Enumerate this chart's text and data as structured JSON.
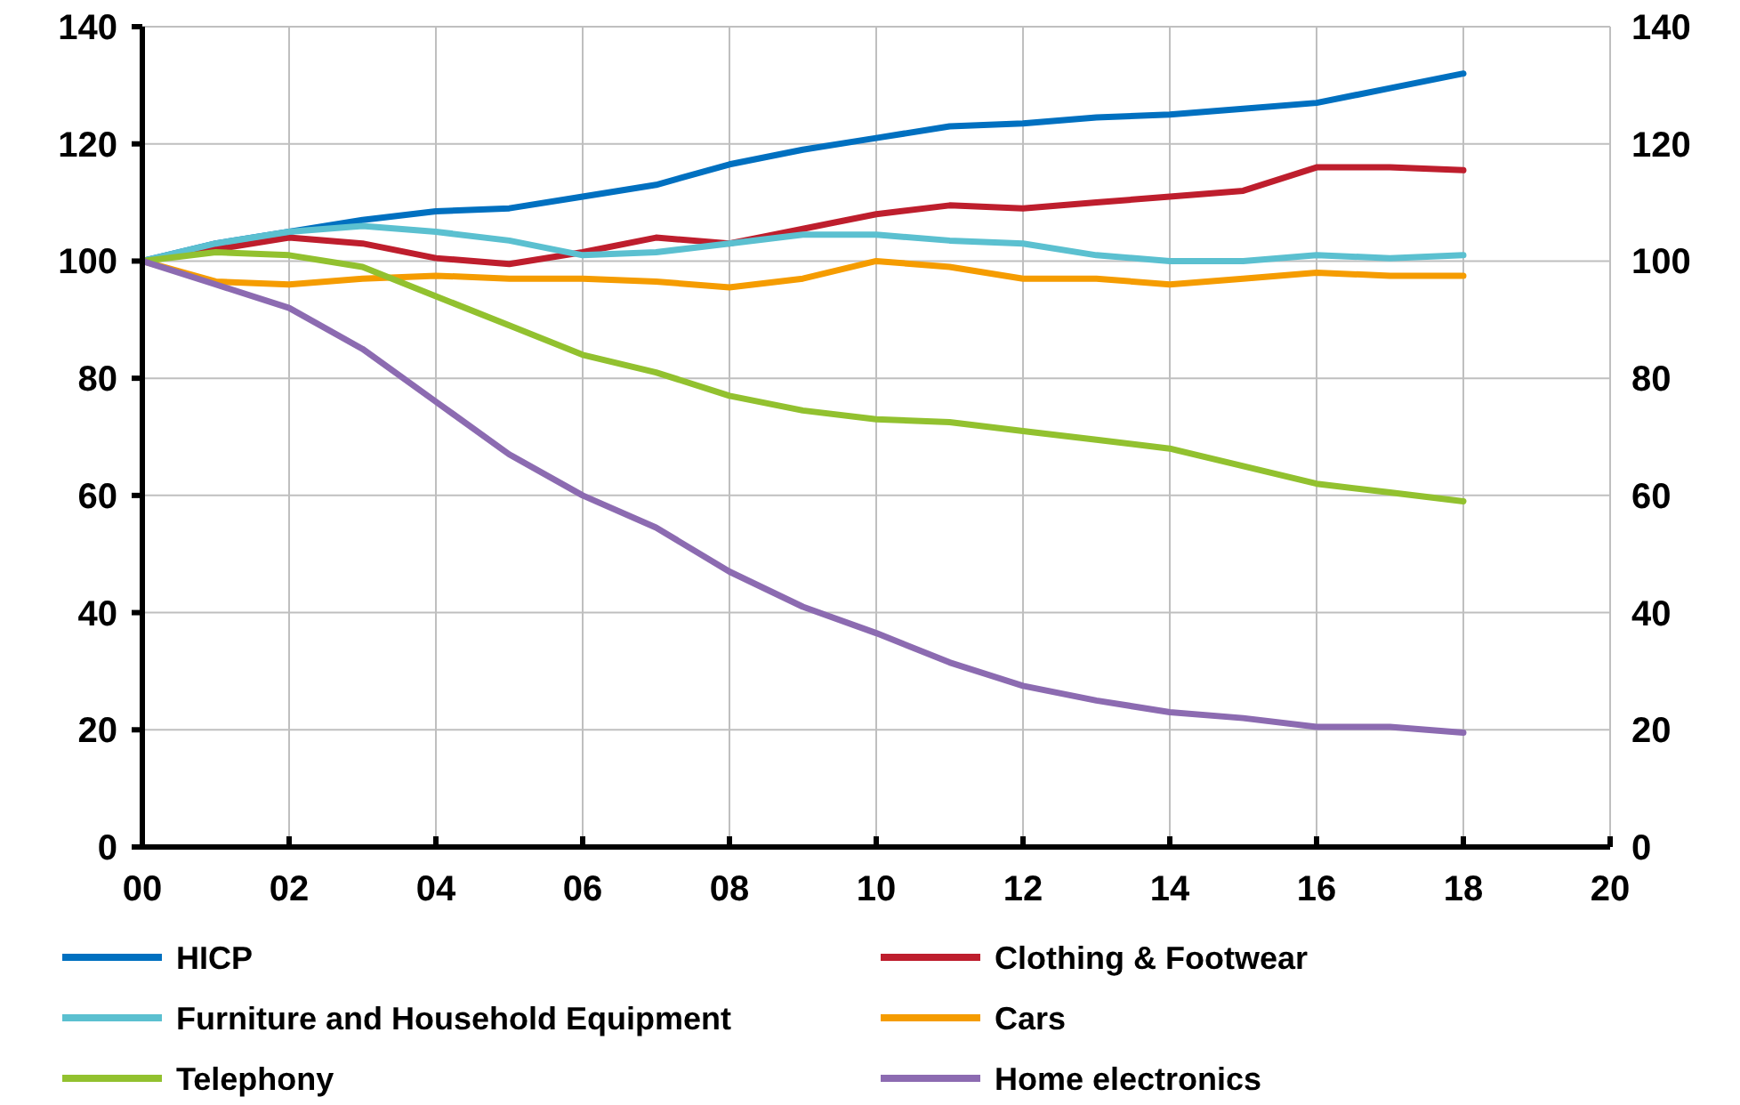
{
  "chart_data": {
    "type": "line",
    "x": [
      0,
      1,
      2,
      3,
      4,
      5,
      6,
      7,
      8,
      9,
      10,
      11,
      12,
      13,
      14,
      15,
      16,
      17,
      18
    ],
    "xlim": [
      0,
      20
    ],
    "xticks": [
      {
        "value": 0,
        "label": "00"
      },
      {
        "value": 2,
        "label": "02"
      },
      {
        "value": 4,
        "label": "04"
      },
      {
        "value": 6,
        "label": "06"
      },
      {
        "value": 8,
        "label": "08"
      },
      {
        "value": 10,
        "label": "10"
      },
      {
        "value": 12,
        "label": "12"
      },
      {
        "value": 14,
        "label": "14"
      },
      {
        "value": 16,
        "label": "16"
      },
      {
        "value": 18,
        "label": "18"
      },
      {
        "value": 20,
        "label": "20"
      }
    ],
    "ylim": [
      0,
      140
    ],
    "yticks": [
      0,
      20,
      40,
      60,
      80,
      100,
      120,
      140
    ],
    "y2lim": [
      0,
      140
    ],
    "y2ticks": [
      0,
      20,
      40,
      60,
      80,
      100,
      120,
      140
    ],
    "grid": true,
    "legend": "bottom",
    "marker": "none",
    "line_style": "solid",
    "series": [
      {
        "name": "HICP",
        "color": "#0070c0",
        "values": [
          100,
          103,
          105,
          107,
          108.5,
          109,
          111,
          113,
          116.5,
          119,
          121,
          123,
          123.5,
          124.5,
          125,
          126,
          127,
          129.5,
          132
        ]
      },
      {
        "name": "Clothing & Footwear",
        "color": "#be1e2d",
        "values": [
          100,
          102,
          104,
          103,
          100.5,
          99.5,
          101.5,
          104,
          103,
          105.5,
          108,
          109.5,
          109,
          110,
          111,
          112,
          116,
          116,
          115.5
        ]
      },
      {
        "name": "Furniture and Household Equipment",
        "color": "#5bc0d0",
        "values": [
          100,
          103,
          105,
          106,
          105,
          103.5,
          101,
          101.5,
          103,
          104.5,
          104.5,
          103.5,
          103,
          101,
          100,
          100,
          101,
          100.5,
          101
        ]
      },
      {
        "name": "Cars",
        "color": "#f59c00",
        "values": [
          100,
          96.5,
          96,
          97,
          97.5,
          97,
          97,
          96.5,
          95.5,
          97,
          100,
          99,
          97,
          97,
          96,
          97,
          98,
          97.5,
          97.5
        ]
      },
      {
        "name": "Telephony",
        "color": "#92c12f",
        "values": [
          100,
          101.5,
          101,
          99,
          94,
          89,
          84,
          81,
          77,
          74.5,
          73,
          72.5,
          71,
          69.5,
          68,
          65,
          62,
          60.5,
          59
        ]
      },
      {
        "name": "Home electronics",
        "color": "#8c6bb1",
        "values": [
          100,
          96,
          92,
          85,
          76,
          67,
          60,
          54.5,
          47,
          41,
          36.5,
          31.5,
          27.5,
          25,
          23,
          22,
          20.5,
          20.5,
          19.5
        ]
      }
    ]
  }
}
